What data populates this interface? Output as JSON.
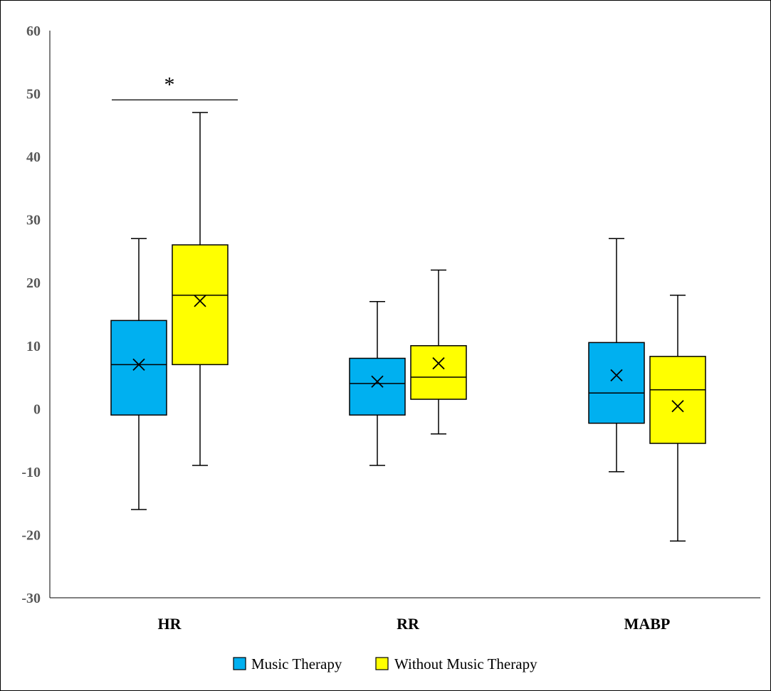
{
  "chart_data": {
    "type": "box",
    "categories": [
      "HR",
      "RR",
      "MABP"
    ],
    "y_ticks": [
      "60",
      "50",
      "40",
      "30",
      "20",
      "10",
      "0",
      "-10",
      "-20",
      "-30"
    ],
    "ylim": [
      -30,
      60
    ],
    "grid": false,
    "legend_position": "bottom",
    "series": [
      {
        "name": "Music Therapy",
        "color": "#00b0f0",
        "boxes": [
          {
            "category": "HR",
            "min": -16,
            "q1": -1,
            "median": 7,
            "q3": 14,
            "max": 27,
            "mean": 7
          },
          {
            "category": "RR",
            "min": -9,
            "q1": -1,
            "median": 4,
            "q3": 8,
            "max": 17,
            "mean": 4.3
          },
          {
            "category": "MABP",
            "min": -10,
            "q1": -2.3,
            "median": 2.5,
            "q3": 10.5,
            "max": 27,
            "mean": 5.3
          }
        ]
      },
      {
        "name": "Without Music Therapy",
        "color": "#ffff00",
        "boxes": [
          {
            "category": "HR",
            "min": -9,
            "q1": 7,
            "median": 18,
            "q3": 26,
            "max": 47,
            "mean": 17.1
          },
          {
            "category": "RR",
            "min": -4,
            "q1": 1.5,
            "median": 5,
            "q3": 10,
            "max": 22,
            "mean": 7.2
          },
          {
            "category": "MABP",
            "min": -21,
            "q1": -5.5,
            "median": 3,
            "q3": 8.3,
            "max": 18,
            "mean": 0.4
          }
        ]
      }
    ],
    "annotations": [
      {
        "text": "*",
        "category": "HR",
        "y": 49,
        "meaning": "significance bracket between Music Therapy and Without Music Therapy"
      }
    ]
  }
}
